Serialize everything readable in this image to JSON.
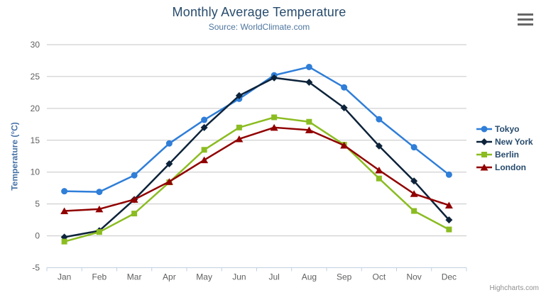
{
  "title": "Monthly Average Temperature",
  "subtitle": "Source: WorldClimate.com",
  "credits": "Highcharts.com",
  "menu_icon": "hamburger-menu-icon",
  "axes": {
    "y_title": "Temperature (°C)",
    "y_ticks": [
      -5,
      0,
      5,
      10,
      15,
      20,
      25,
      30
    ],
    "x_labels": [
      "Jan",
      "Feb",
      "Mar",
      "Apr",
      "May",
      "Jun",
      "Jul",
      "Aug",
      "Sep",
      "Oct",
      "Nov",
      "Dec"
    ]
  },
  "colors": {
    "title": "#274b6d",
    "subtitle": "#4d759e",
    "axis_title": "#4572a7",
    "tick_label": "#606060",
    "gridline": "#c6c6c6",
    "axis_line": "#c0d0e0",
    "legend_text": "#274b6d",
    "credits_text": "#909090"
  },
  "chart_data": {
    "type": "line",
    "title": "Monthly Average Temperature",
    "subtitle": "Source: WorldClimate.com",
    "xlabel": "",
    "ylabel": "Temperature (°C)",
    "ylim": [
      -5,
      30
    ],
    "y_tick_interval": 5,
    "grid": true,
    "legend_position": "right",
    "categories": [
      "Jan",
      "Feb",
      "Mar",
      "Apr",
      "May",
      "Jun",
      "Jul",
      "Aug",
      "Sep",
      "Oct",
      "Nov",
      "Dec"
    ],
    "series": [
      {
        "name": "Tokyo",
        "color": "#2f7ed8",
        "marker": "circle",
        "values": [
          7.0,
          6.9,
          9.5,
          14.5,
          18.2,
          21.5,
          25.2,
          26.5,
          23.3,
          18.3,
          13.9,
          9.6
        ]
      },
      {
        "name": "New York",
        "color": "#0d233a",
        "marker": "diamond",
        "values": [
          -0.2,
          0.8,
          5.7,
          11.3,
          17.0,
          22.0,
          24.8,
          24.1,
          20.1,
          14.1,
          8.6,
          2.5
        ]
      },
      {
        "name": "Berlin",
        "color": "#8bbc21",
        "marker": "square",
        "values": [
          -0.9,
          0.6,
          3.5,
          8.4,
          13.5,
          17.0,
          18.6,
          17.9,
          14.3,
          9.0,
          3.9,
          1.0
        ]
      },
      {
        "name": "London",
        "color": "#910000",
        "marker": "triangle",
        "values": [
          3.9,
          4.2,
          5.7,
          8.5,
          11.9,
          15.2,
          17.0,
          16.6,
          14.2,
          10.3,
          6.6,
          4.8
        ]
      }
    ]
  }
}
